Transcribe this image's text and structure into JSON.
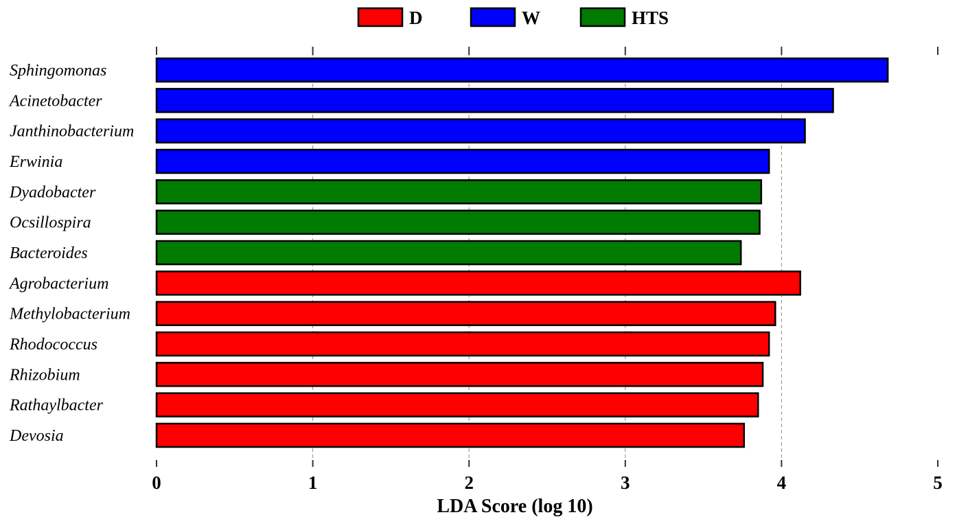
{
  "chart_data": {
    "type": "bar",
    "orientation": "horizontal",
    "xlabel": "LDA Score (log 10)",
    "xlim": [
      0,
      5
    ],
    "xticks": [
      "0",
      "1",
      "2",
      "3",
      "4",
      "5"
    ],
    "grid": true,
    "legend_position": "top-center",
    "legend": [
      {
        "label": "D",
        "color": "#ff0000"
      },
      {
        "label": "W",
        "color": "#0000ff"
      },
      {
        "label": "HTS",
        "color": "#007a00"
      }
    ],
    "categories": [
      "Sphingomonas",
      "Acinetobacter",
      "Janthinobacterium",
      "Erwinia",
      "Dyadobacter",
      "Ocsillospira",
      "Bacteroides",
      "Agrobacterium",
      "Methylobacterium",
      "Rhodococcus",
      "Rhizobium",
      "Rathaylbacter",
      "Devosia"
    ],
    "values": [
      4.68,
      4.33,
      4.15,
      3.92,
      3.87,
      3.86,
      3.74,
      4.12,
      3.96,
      3.92,
      3.88,
      3.85,
      3.76
    ],
    "groups": [
      "W",
      "W",
      "W",
      "W",
      "HTS",
      "HTS",
      "HTS",
      "D",
      "D",
      "D",
      "D",
      "D",
      "D"
    ]
  }
}
